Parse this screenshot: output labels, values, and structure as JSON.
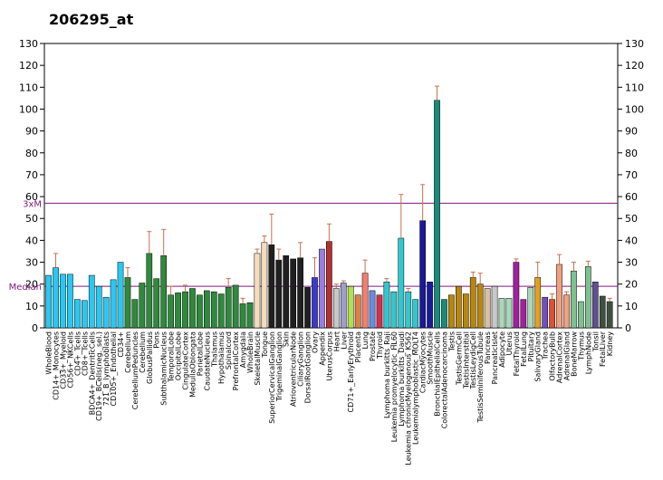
{
  "chart_data": {
    "type": "bar",
    "title": "206295_at",
    "ylim": [
      0,
      130
    ],
    "yticks": [
      0,
      10,
      20,
      30,
      40,
      50,
      60,
      70,
      80,
      90,
      100,
      110,
      120,
      130
    ],
    "grid": false,
    "reference_lines": [
      {
        "label": "3xM",
        "value": 57,
        "color": "#7d1a7d"
      },
      {
        "label": "Median",
        "value": 19,
        "color": "#7d1a7d"
      }
    ],
    "categories": [
      "WholeBlood",
      "CD14+_Monocytes",
      "CD33+_Myeloid",
      "CD56+_NKCells",
      "CD4+_Tcells",
      "CD8+_Tcells",
      "BDCA4+_DentriticCells",
      "CD19+_BCells(neg._sel.)",
      "721_B_lymphoblasts",
      "CD105+_Endothelial",
      "CD34+",
      "Cerebellum",
      "CerebellumPeduncles",
      "Cerebellum",
      "GlobusPallidus",
      "Pons",
      "SubthalamicNucleus",
      "TemporalLobe",
      "OccipitalLobe",
      "CingulateCortex",
      "MedullaOblongata",
      "ParietalLobe",
      "CaudateNucleus",
      "Thalamus",
      "Hypothalamus",
      "Spinalcord",
      "PrefrontalCortex",
      "Amygdala",
      "WholeBrain",
      "SkeletalMuscle",
      "Tongue",
      "SuperiorCervicalGanglion",
      "TrigeminalGanglion",
      "Skin",
      "AtrioventricularNode",
      "CiliaryGanglion",
      "DorsalRootGanglion",
      "Ovary",
      "Appendix",
      "UterusCorpus",
      "Heart",
      "Liver",
      "CD71+_EarlyErythroid",
      "Placenta",
      "Lung",
      "Prostate",
      "Thyroid",
      "Lymphoma burkitts_Raji",
      "Leukemia promyelocytic_HL60",
      "Lymphoma burkitts_Daudi",
      "Leukemia chronicMyelogenous_K562",
      "Leukemialymphoblastic_MOLT4",
      "CardiacMyocytes",
      "SmoothMuscle",
      "BronchialEpithelialCells",
      "ColorectalAdenocarcinoma",
      "Testis",
      "TestisGermCell",
      "TestisInterstitial",
      "TestisLeydigCell",
      "TestisSeminiferousTubule",
      "Pancreas",
      "PancreaticIslet",
      "Adipocyte",
      "Uterus",
      "FetalThyroid",
      "FetalLung",
      "Pituitary",
      "SalivaryGland",
      "Trachea",
      "OlfactoryBulb",
      "AdrenalCortex",
      "AdrenalGland",
      "BoneMarrow",
      "Thymus",
      "LymphNode",
      "Tonsil",
      "FetalLiver",
      "Kidney"
    ],
    "values": [
      24,
      27.5,
      24.5,
      24.5,
      13,
      12.5,
      24,
      19,
      14,
      22,
      30,
      23,
      13,
      20.5,
      34,
      22.5,
      33,
      15,
      16,
      16.5,
      18,
      15,
      17,
      16.5,
      15.5,
      18.5,
      19.5,
      11,
      11.5,
      34,
      39,
      38,
      31,
      33,
      31.5,
      32,
      18.5,
      23,
      36,
      39.5,
      18,
      20.5,
      19,
      15,
      25,
      17,
      15,
      21,
      16.5,
      41,
      16.5,
      13,
      49,
      21,
      104,
      13,
      15,
      19,
      15.5,
      23,
      20,
      18,
      19,
      13.5,
      13.5,
      30,
      13,
      18.5,
      23,
      14,
      13,
      29,
      15,
      26,
      12,
      28,
      21,
      14.5,
      12
    ],
    "errors": [
      0,
      6.5,
      0,
      0,
      0,
      0,
      0,
      0,
      0,
      0,
      0,
      4.5,
      0,
      0,
      10,
      0,
      12,
      4,
      0,
      3,
      0,
      0,
      0,
      0,
      0,
      4,
      0,
      2.5,
      0,
      2,
      3,
      14,
      5,
      0,
      0,
      7,
      0,
      9,
      0,
      8,
      2,
      1,
      0,
      0,
      6,
      0,
      0,
      1.5,
      0,
      20,
      1.5,
      0,
      16.5,
      0,
      6.5,
      0,
      0,
      0,
      0,
      2.5,
      5,
      0,
      0,
      0,
      0,
      1.5,
      0,
      0,
      7,
      0,
      2.5,
      4.5,
      1.5,
      4,
      0,
      2.5,
      0,
      0,
      1.5
    ],
    "colors": [
      "#27c9f3",
      "#27c9f3",
      "#27c9f3",
      "#27c9f3",
      "#27c9f3",
      "#27c9f3",
      "#27c9f3",
      "#27c9f3",
      "#27c9f3",
      "#27c9f3",
      "#27c9f3",
      "#2e8a3c",
      "#2e8a3c",
      "#2e8a3c",
      "#2e8a3c",
      "#2e8a3c",
      "#2e8a3c",
      "#2e8a3c",
      "#2e8a3c",
      "#2e8a3c",
      "#2e8a3c",
      "#2e8a3c",
      "#2e8a3c",
      "#2e8a3c",
      "#2e8a3c",
      "#2e8a3c",
      "#2e8a3c",
      "#2e8a3c",
      "#2e8a3c",
      "#f5dcbc",
      "#f5dcbc",
      "#202020",
      "#202020",
      "#202020",
      "#202020",
      "#202020",
      "#202020",
      "#3a3ad0",
      "#9a7de0",
      "#b23030",
      "#c8c8c8",
      "#9aa0c8",
      "#b0e050",
      "#e08040",
      "#f08070",
      "#6a8ce0",
      "#d03050",
      "#30c8d0",
      "#30c8d0",
      "#30c8d0",
      "#30c8d0",
      "#30c8d0",
      "#1a1a9a",
      "#1a1a9a",
      "#1a8a7a",
      "#1a8a7a",
      "#b8860b",
      "#b8860b",
      "#b8860b",
      "#b8860b",
      "#b8860b",
      "#d8c0a0",
      "#c8c8c8",
      "#a8d8b8",
      "#a8d8b8",
      "#a020a0",
      "#a020a0",
      "#a8d8b8",
      "#e0a020",
      "#7050c0",
      "#e05030",
      "#f0a080",
      "#f0a080",
      "#80c090",
      "#80c090",
      "#80c090",
      "#605090",
      "#405040",
      "#405040"
    ],
    "axis": {
      "left_ticks": true,
      "right_ticks": true
    }
  }
}
